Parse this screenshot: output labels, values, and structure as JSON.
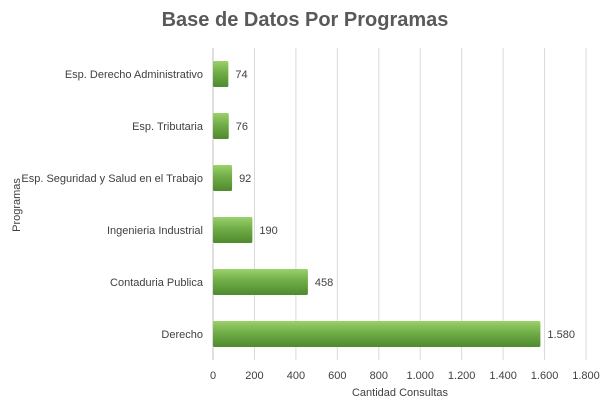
{
  "chart_data": {
    "type": "bar",
    "orientation": "horizontal",
    "title": "Base de Datos Por Programas",
    "xlabel": "Cantidad Consultas",
    "ylabel": "Programas",
    "categories": [
      "Esp. Derecho Administrativo",
      "Esp. Tributaria",
      "Esp. Seguridad y Salud en el Trabajo",
      "Ingenieria Industrial",
      "Contaduria Publica",
      "Derecho"
    ],
    "values": [
      74,
      76,
      92,
      190,
      458,
      1580
    ],
    "value_labels": [
      "74",
      "76",
      "92",
      "190",
      "458",
      "1.580"
    ],
    "xlim": [
      0,
      1800
    ],
    "xticks": [
      0,
      200,
      400,
      600,
      800,
      1000,
      1200,
      1400,
      1600,
      1800
    ],
    "xtick_labels": [
      "0",
      "200",
      "400",
      "600",
      "800",
      "1.000",
      "1.200",
      "1.400",
      "1.600",
      "1.800"
    ],
    "grid": "vertical",
    "legend": "none",
    "bar_color": "#70ad47",
    "bar_highlight_color": "#9bd16b",
    "bar_shadow_color": "#4e8a2f"
  }
}
